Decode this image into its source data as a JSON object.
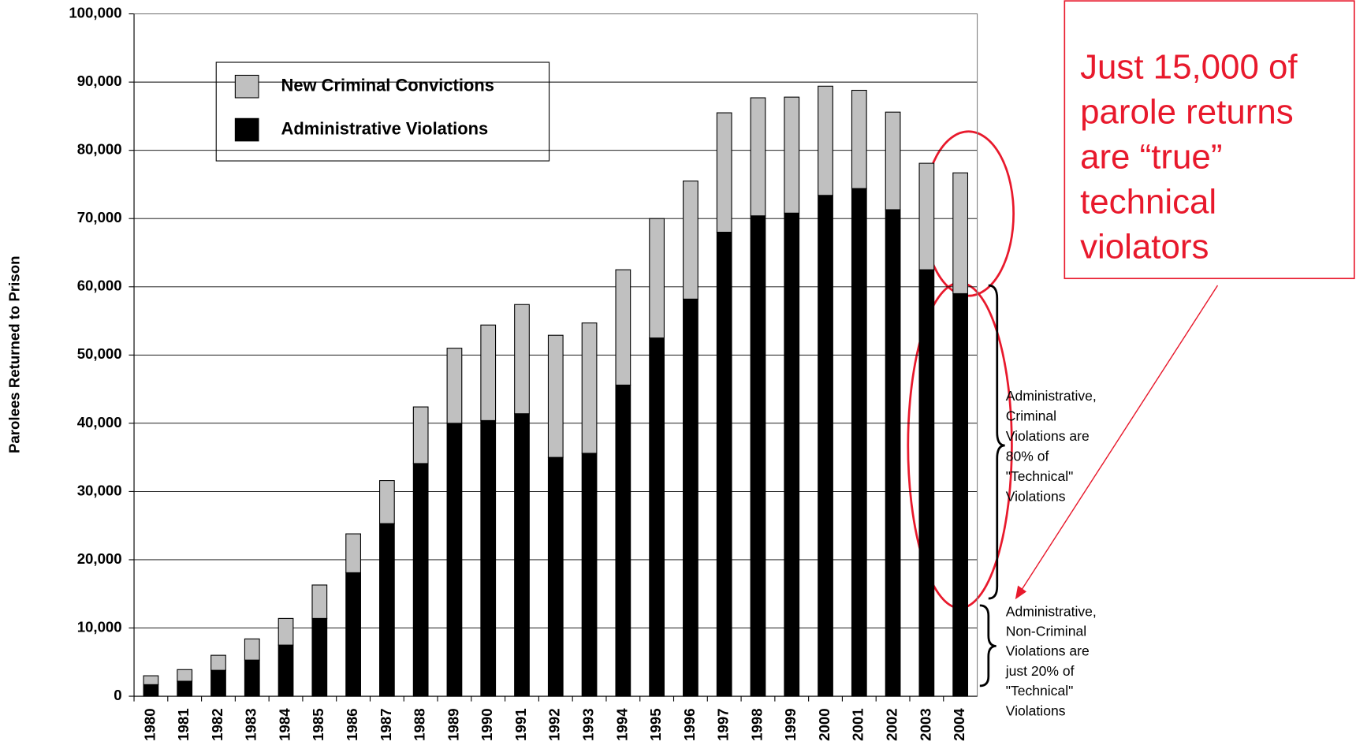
{
  "chart_data": {
    "type": "stacked_bar",
    "y_label": "Parolees Returned to Prison",
    "categories": [
      "1980",
      "1981",
      "1982",
      "1983",
      "1984",
      "1985",
      "1986",
      "1987",
      "1988",
      "1989",
      "1990",
      "1991",
      "1992",
      "1993",
      "1994",
      "1995",
      "1996",
      "1997",
      "1998",
      "1999",
      "2000",
      "2001",
      "2002",
      "2003",
      "2004"
    ],
    "series": [
      {
        "name": "Administrative Violations",
        "color": "#000000",
        "values": [
          1700,
          2200,
          3800,
          5300,
          7500,
          11400,
          18100,
          25300,
          34100,
          40000,
          40400,
          41400,
          35000,
          35600,
          45600,
          52500,
          58200,
          68000,
          70400,
          70800,
          73400,
          74400,
          71300,
          62500,
          59000
        ]
      },
      {
        "name": "New Criminal Convictions",
        "color": "#c0c0c0",
        "values": [
          1300,
          1700,
          2200,
          3100,
          3900,
          4900,
          5700,
          6300,
          8300,
          11000,
          14000,
          16000,
          17900,
          19100,
          16900,
          17500,
          17300,
          17500,
          17300,
          17000,
          16000,
          14400,
          14300,
          15600,
          17700
        ]
      }
    ],
    "ylim": [
      0,
      100000
    ],
    "yticks": [
      0,
      {
        "value": 10000,
        "label": "10,000"
      },
      {
        "value": 20000,
        "label": "20,000"
      },
      {
        "value": 30000,
        "label": "30,000"
      },
      {
        "value": 40000,
        "label": "40,000"
      },
      {
        "value": 50000,
        "label": "50,000"
      },
      {
        "value": 60000,
        "label": "60,000"
      },
      {
        "value": 70000,
        "label": "70,000"
      },
      {
        "value": 80000,
        "label": "80,000"
      },
      {
        "value": 90000,
        "label": "90,000"
      },
      {
        "value": 100000,
        "label": "100,000"
      }
    ],
    "grid": true,
    "annotations": [
      {
        "lines": [
          "Just 15,000 of",
          "parole returns",
          "are “true”",
          "technical",
          "violators"
        ]
      },
      {
        "lines": [
          "Administrative,",
          "Criminal",
          "Violations are",
          "80% of",
          "\"Technical\"",
          "Violations"
        ]
      },
      {
        "lines": [
          "Administrative,",
          "Non-Criminal",
          "Violations are",
          "just 20% of",
          "\"Technical\"",
          "Violations"
        ]
      }
    ]
  }
}
